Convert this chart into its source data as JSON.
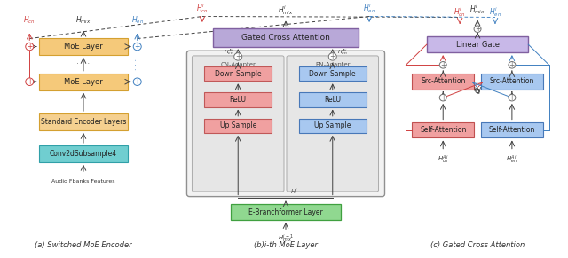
{
  "title_a": "(a) Switched MoE Encoder",
  "title_b": "(b)i-th MoE Layer",
  "title_c": "(c) Gated Cross Attention",
  "colors": {
    "moe_fill": "#F5C97A",
    "moe_edge": "#D4A030",
    "std_enc_fill": "#F5D090",
    "std_enc_edge": "#D4A030",
    "conv_fill": "#70CED0",
    "conv_edge": "#30A0A8",
    "gated_fill": "#B8A8D8",
    "gated_edge": "#8060A0",
    "linear_gate_fill": "#C8B8E8",
    "linear_gate_edge": "#8060A0",
    "cn_fill": "#F08080",
    "cn_edge": "#C04040",
    "en_fill": "#A0C8F0",
    "en_edge": "#4080C0",
    "ebranch_fill": "#90D890",
    "ebranch_edge": "#40A040",
    "adapter_bg": "#E8E8E8",
    "outer_bg": "#D8D8D8",
    "arrow_dark": "#404040",
    "arrow_red": "#D04040",
    "arrow_blue": "#4080C0",
    "arrow_gray": "#707070"
  }
}
